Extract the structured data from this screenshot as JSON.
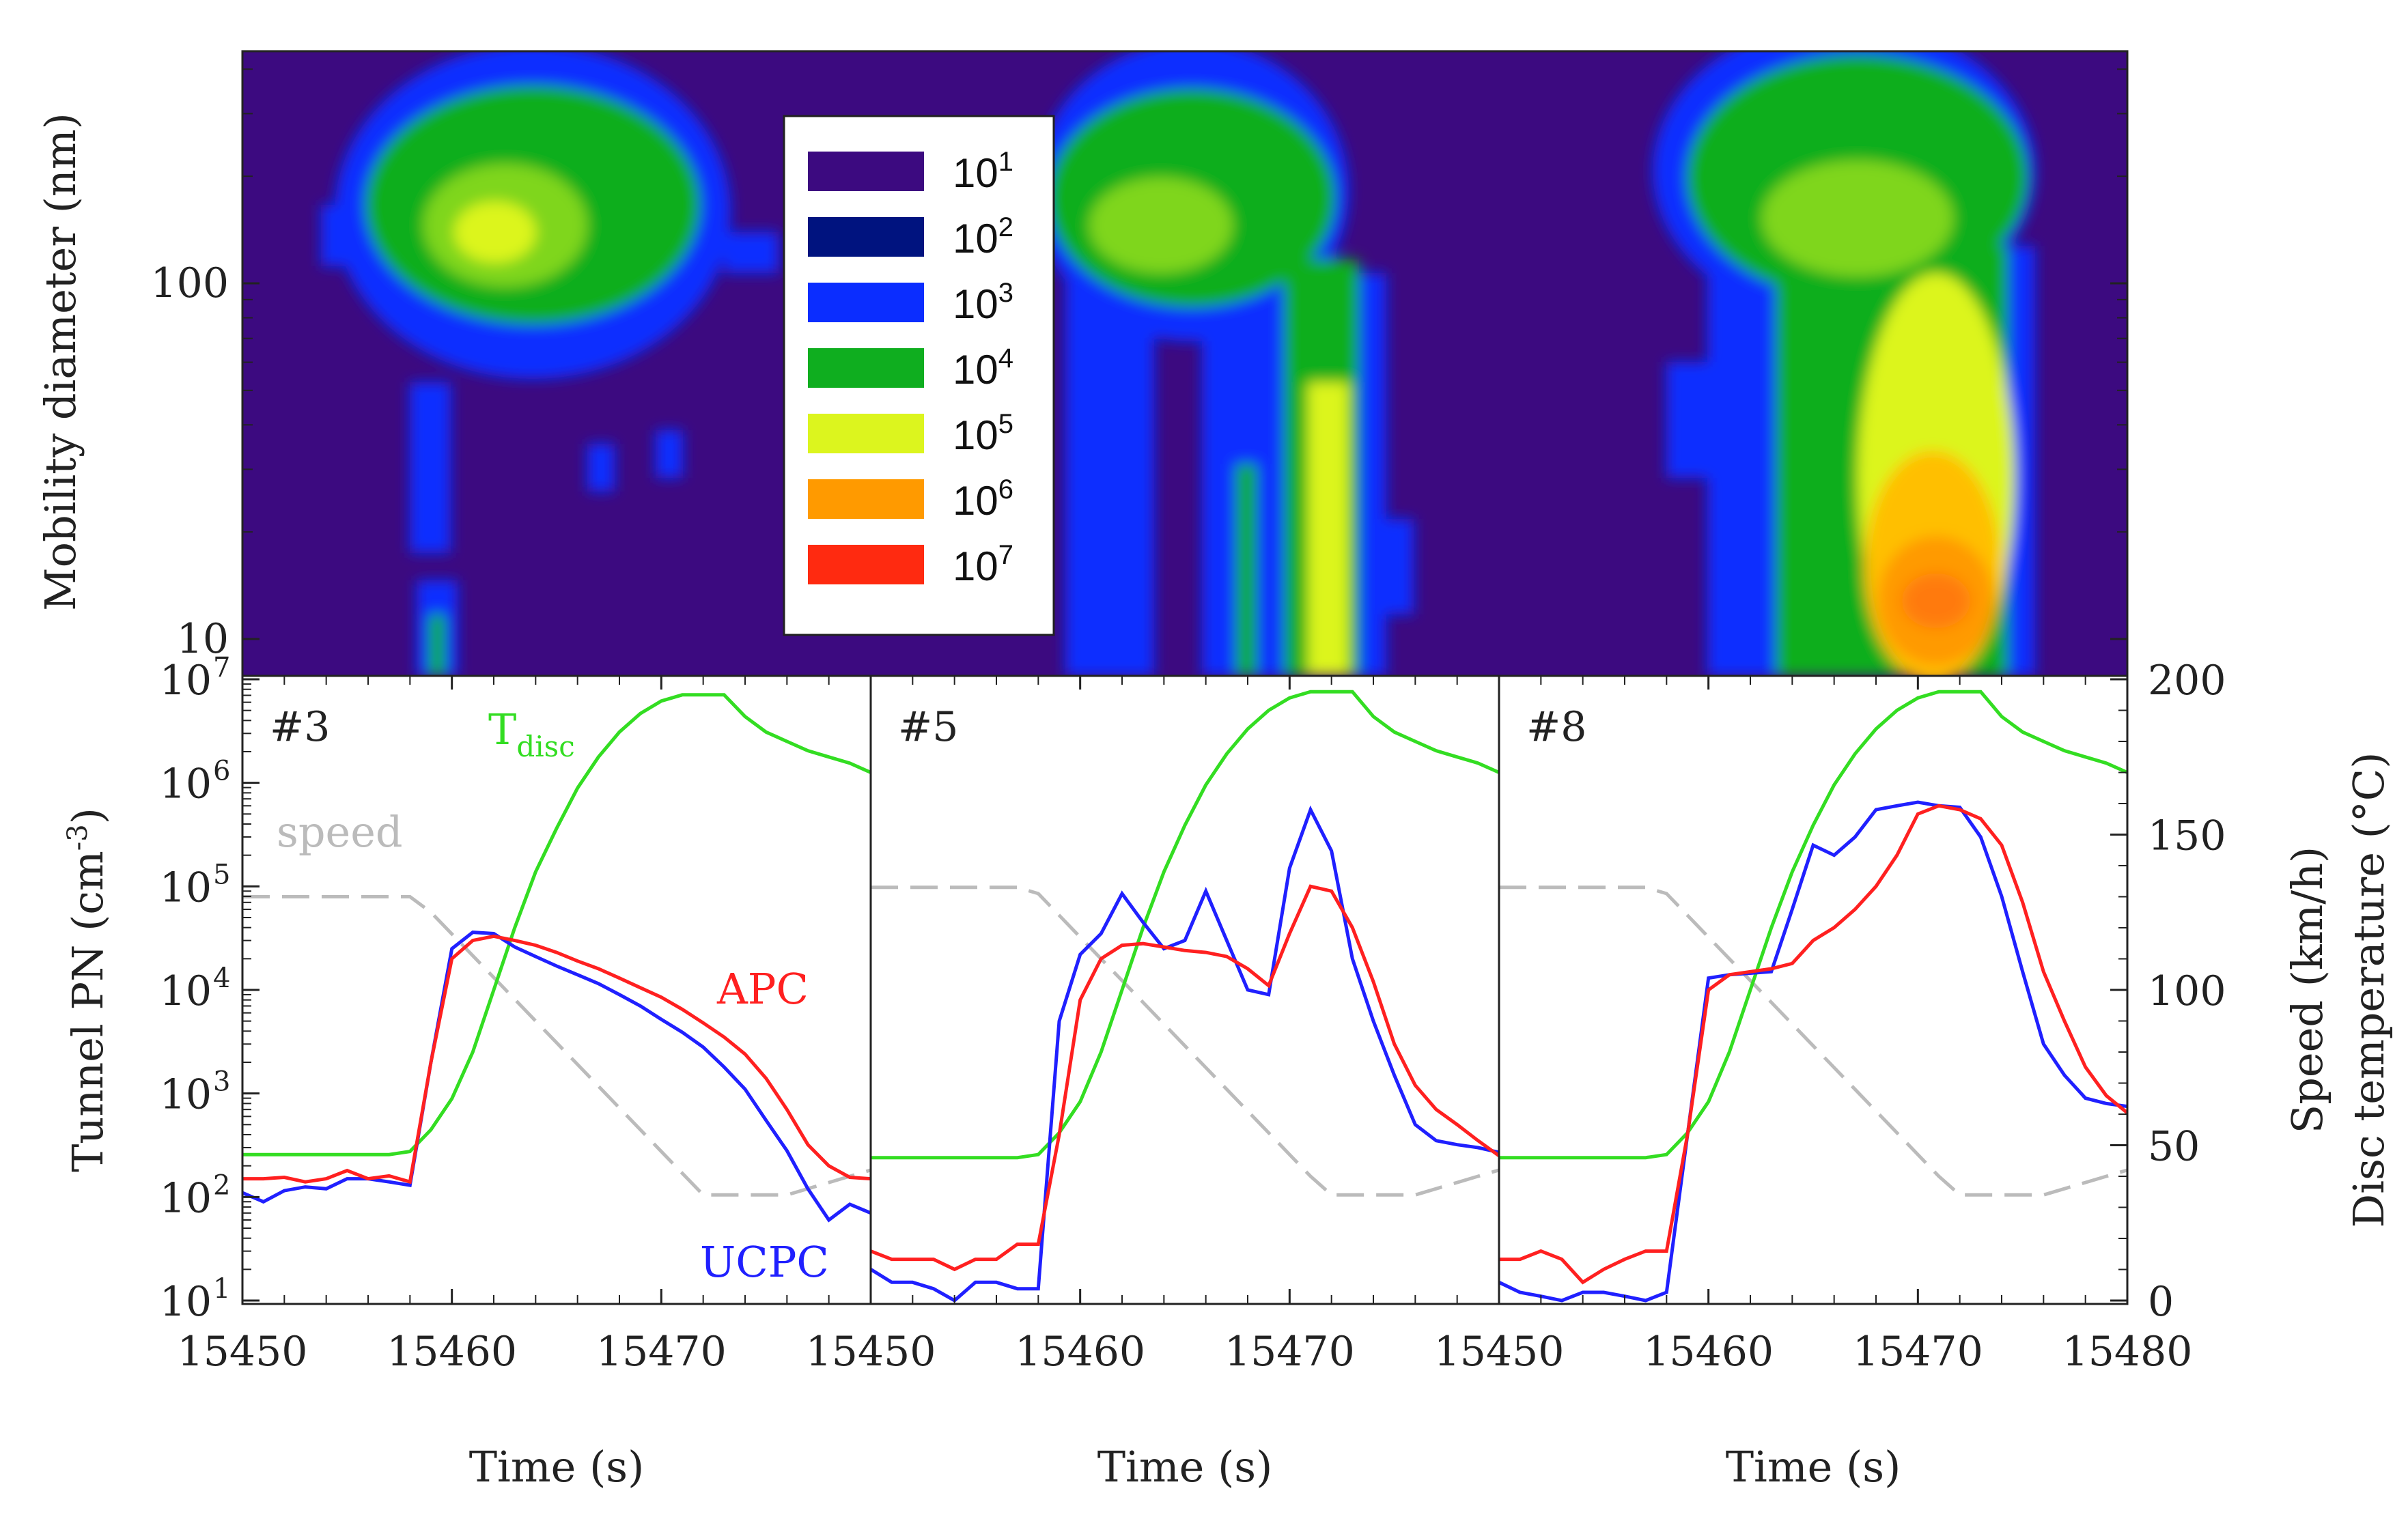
{
  "chart_data": {
    "type": "line",
    "xlabel": "Time (s)",
    "shared_y_labels": {
      "heatmap": "Mobility diameter (nm)",
      "left": "Tunnel PN (cm-3)",
      "right_speed": "Speed (km/h)",
      "right_temp": "Disc temperature (°C)"
    },
    "heatmap_y_ticks": [
      {
        "value": 100,
        "label": "100"
      },
      {
        "value": 10,
        "label": "10"
      }
    ],
    "heatmap_legend": [
      {
        "base": "10",
        "exp": "1",
        "color": "#3c0a80"
      },
      {
        "base": "10",
        "exp": "2",
        "color": "#00137f"
      },
      {
        "base": "10",
        "exp": "3",
        "color": "#0b2dff"
      },
      {
        "base": "10",
        "exp": "4",
        "color": "#0fae1f"
      },
      {
        "base": "10",
        "exp": "5",
        "color": "#dcf51e"
      },
      {
        "base": "10",
        "exp": "6",
        "color": "#ff9a00"
      },
      {
        "base": "10",
        "exp": "7",
        "color": "#ff2a10"
      }
    ],
    "left_y_ticks": [
      {
        "exp": 1,
        "base": "10",
        "label": "1"
      },
      {
        "exp": 2,
        "base": "10",
        "label": "2"
      },
      {
        "exp": 3,
        "base": "10",
        "label": "3"
      },
      {
        "exp": 4,
        "base": "10",
        "label": "4"
      },
      {
        "exp": 5,
        "base": "10",
        "label": "5"
      },
      {
        "exp": 6,
        "base": "10",
        "label": "6"
      },
      {
        "exp": 7,
        "base": "10",
        "label": "7"
      }
    ],
    "right_y_ticks": [
      0,
      50,
      100,
      150,
      200
    ],
    "right_ylim": [
      0,
      200
    ],
    "left_ylim_log10": [
      1,
      7
    ],
    "xlim": [
      15450,
      15480
    ],
    "x_ticks_panel": [
      15450,
      15460,
      15470
    ],
    "x_tick_last": 15480,
    "annotations": {
      "tdisc_main": "T",
      "tdisc_sub": "disc",
      "speed": "speed",
      "apc": "APC",
      "ucpc": "UCPC"
    },
    "colors": {
      "apc": "#ff2020",
      "ucpc": "#2020ff",
      "tdisc": "#33dd22",
      "speed": "#bbbbbb"
    },
    "panels": [
      {
        "label": "#3",
        "x": [
          15450,
          15451,
          15452,
          15453,
          15454,
          15455,
          15456,
          15457,
          15458,
          15459,
          15460,
          15461,
          15462,
          15463,
          15464,
          15465,
          15466,
          15467,
          15468,
          15469,
          15470,
          15471,
          15472,
          15473,
          15474,
          15475,
          15476,
          15477,
          15478,
          15479,
          15480
        ],
        "apc": [
          150,
          150,
          155,
          140,
          150,
          180,
          150,
          160,
          140,
          2000,
          20000,
          30000,
          33000,
          30000,
          27000,
          23000,
          19000,
          16000,
          13000,
          10500,
          8500,
          6500,
          4800,
          3500,
          2400,
          1400,
          700,
          320,
          200,
          155,
          150
        ],
        "ucpc": [
          110,
          90,
          115,
          125,
          120,
          150,
          150,
          140,
          130,
          2000,
          25000,
          36000,
          35000,
          26000,
          21000,
          17000,
          14000,
          11500,
          9000,
          7000,
          5200,
          3900,
          2800,
          1800,
          1100,
          550,
          280,
          120,
          60,
          85,
          70
        ],
        "speed": [
          130,
          130,
          130,
          130,
          130,
          130,
          130,
          130,
          130,
          125,
          118,
          111,
          104,
          97,
          90,
          83,
          76,
          69,
          62,
          55,
          48,
          41,
          34,
          34,
          34,
          34,
          34,
          36,
          38,
          40,
          42
        ],
        "temp": [
          47,
          47,
          47,
          47,
          47,
          47,
          47,
          47,
          48,
          55,
          65,
          80,
          100,
          120,
          138,
          152,
          165,
          175,
          183,
          189,
          193,
          195,
          195,
          195,
          188,
          183,
          180,
          177,
          175,
          173,
          170
        ]
      },
      {
        "label": "#5",
        "x": [
          15450,
          15451,
          15452,
          15453,
          15454,
          15455,
          15456,
          15457,
          15458,
          15459,
          15460,
          15461,
          15462,
          15463,
          15464,
          15465,
          15466,
          15467,
          15468,
          15469,
          15470,
          15471,
          15472,
          15473,
          15474,
          15475,
          15476,
          15477,
          15478,
          15479,
          15480
        ],
        "apc": [
          30,
          25,
          25,
          25,
          20,
          25,
          25,
          35,
          35,
          400,
          8000,
          20000,
          27000,
          28000,
          26000,
          24000,
          23000,
          21000,
          16000,
          11000,
          35000,
          100000,
          90000,
          40000,
          12000,
          3000,
          1200,
          700,
          500,
          350,
          250
        ],
        "ucpc": [
          20,
          15,
          15,
          13,
          10,
          15,
          15,
          13,
          13,
          5000,
          22000,
          35000,
          85000,
          45000,
          25000,
          30000,
          90000,
          30000,
          10000,
          9000,
          150000,
          550000,
          220000,
          20000,
          5000,
          1500,
          500,
          350,
          320,
          300,
          270
        ],
        "speed": [
          133,
          133,
          133,
          133,
          133,
          133,
          133,
          133,
          131,
          124,
          117,
          110,
          103,
          96,
          89,
          82,
          75,
          68,
          61,
          54,
          47,
          40,
          34,
          34,
          34,
          34,
          34,
          36,
          38,
          40,
          42
        ],
        "temp": [
          46,
          46,
          46,
          46,
          46,
          46,
          46,
          46,
          47,
          54,
          64,
          80,
          100,
          120,
          138,
          153,
          166,
          176,
          184,
          190,
          194,
          196,
          196,
          196,
          188,
          183,
          180,
          177,
          175,
          173,
          170
        ]
      },
      {
        "label": "#8",
        "x": [
          15450,
          15451,
          15452,
          15453,
          15454,
          15455,
          15456,
          15457,
          15458,
          15459,
          15460,
          15461,
          15462,
          15463,
          15464,
          15465,
          15466,
          15467,
          15468,
          15469,
          15470,
          15471,
          15472,
          15473,
          15474,
          15475,
          15476,
          15477,
          15478,
          15479,
          15480
        ],
        "apc": [
          25,
          25,
          30,
          25,
          15,
          20,
          25,
          30,
          30,
          400,
          10000,
          14000,
          15000,
          16000,
          18000,
          30000,
          40000,
          60000,
          100000,
          200000,
          500000,
          600000,
          550000,
          450000,
          250000,
          70000,
          15000,
          5000,
          1800,
          950,
          650
        ],
        "ucpc": [
          15,
          12,
          11,
          10,
          12,
          12,
          11,
          10,
          12,
          400,
          13000,
          14000,
          14500,
          15000,
          60000,
          250000,
          200000,
          300000,
          550000,
          600000,
          650000,
          600000,
          580000,
          300000,
          80000,
          15000,
          3000,
          1500,
          900,
          800,
          750
        ],
        "speed": [
          133,
          133,
          133,
          133,
          133,
          133,
          133,
          133,
          131,
          124,
          117,
          110,
          103,
          96,
          89,
          82,
          75,
          68,
          61,
          54,
          47,
          40,
          34,
          34,
          34,
          34,
          34,
          36,
          38,
          40,
          42
        ],
        "temp": [
          46,
          46,
          46,
          46,
          46,
          46,
          46,
          46,
          47,
          54,
          64,
          80,
          100,
          120,
          138,
          153,
          166,
          176,
          184,
          190,
          194,
          196,
          196,
          196,
          188,
          183,
          180,
          177,
          175,
          173,
          170
        ]
      }
    ]
  }
}
